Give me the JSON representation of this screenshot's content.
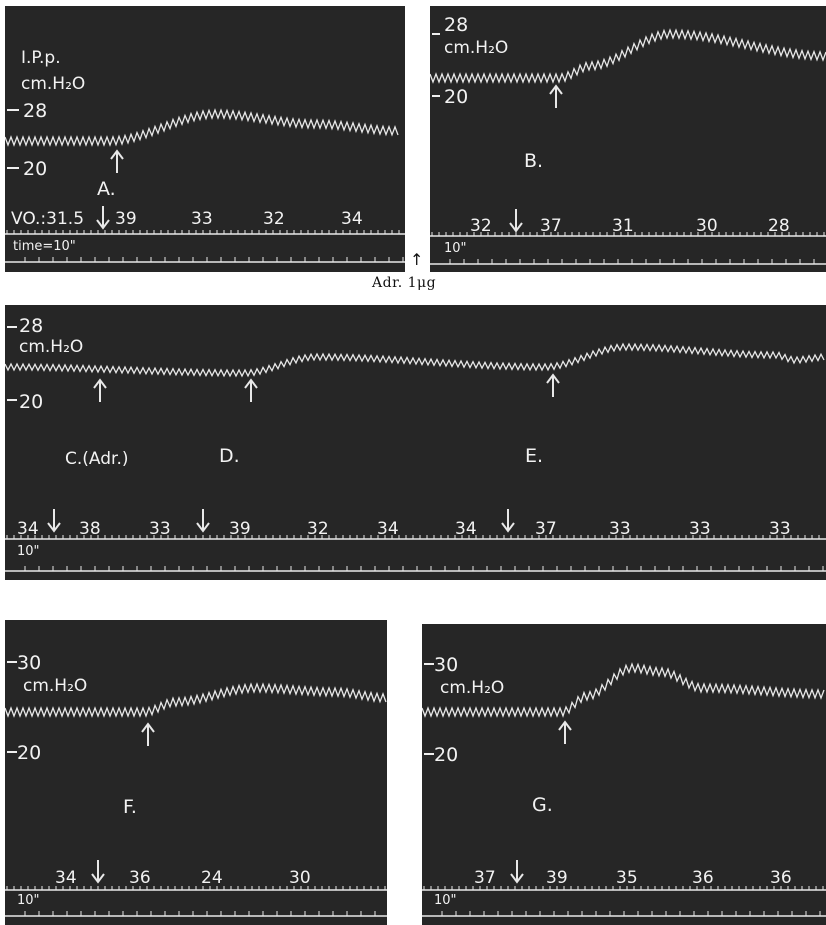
{
  "caption": {
    "text": "Adr. 1μg",
    "arrow": "↑"
  },
  "panels": {
    "A": {
      "ipp_label": "I.P.p.",
      "units": "cm.H₂O",
      "tick_high": "28",
      "tick_low": "20",
      "letter": "A.",
      "vo_label": "VO.:31.5",
      "values": [
        "39",
        "33",
        "32",
        "34"
      ],
      "time_label": "time=10\""
    },
    "B": {
      "units": "cm.H₂O",
      "tick_high": "28",
      "tick_low": "20",
      "letter": "B.",
      "values": [
        "32",
        "37",
        "31",
        "30",
        "28"
      ],
      "time_label": "10\""
    },
    "CDE": {
      "units": "cm.H₂O",
      "tick_high": "28",
      "tick_low": "20",
      "letter_c": "C.(Adr.)",
      "letter_d": "D.",
      "letter_e": "E.",
      "values": [
        "34",
        "38",
        "33",
        "39",
        "32",
        "34",
        "34",
        "37",
        "33",
        "33",
        "33"
      ],
      "time_label": "10\""
    },
    "F": {
      "units": "cm.H₂O",
      "tick_high": "30",
      "tick_low": "20",
      "letter": "F.",
      "values": [
        "34",
        "36",
        "24",
        "30"
      ],
      "time_label": "10\""
    },
    "G": {
      "units": "cm.H₂O",
      "tick_high": "30",
      "tick_low": "20",
      "letter": "G.",
      "values": [
        "37",
        "39",
        "35",
        "36",
        "36"
      ],
      "time_label": "10\""
    }
  },
  "colors": {
    "panel": "#262626",
    "trace": "#e8e8e8"
  },
  "icons": {
    "arrow_up": "arrow-up-icon",
    "arrow_down": "arrow-down-icon"
  }
}
